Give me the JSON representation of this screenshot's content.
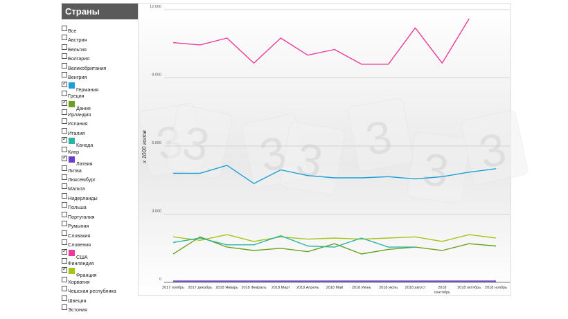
{
  "sidebar": {
    "title": "Страны",
    "countries": [
      {
        "label": "Все",
        "checked": false
      },
      {
        "label": "Австрия",
        "checked": false
      },
      {
        "label": "Бельгия",
        "checked": false
      },
      {
        "label": "Болгария",
        "checked": false
      },
      {
        "label": "Великобритания",
        "checked": false
      },
      {
        "label": "Венгрия",
        "checked": false
      },
      {
        "label": "Германия",
        "checked": true,
        "color": "#1c9fd8"
      },
      {
        "label": "Греция",
        "checked": false
      },
      {
        "label": "Дания",
        "checked": true,
        "color": "#6aa11d"
      },
      {
        "label": "Ирландия",
        "checked": false
      },
      {
        "label": "Испания",
        "checked": false
      },
      {
        "label": "Италия",
        "checked": false
      },
      {
        "label": "Канада",
        "checked": true,
        "color": "#2bb3a6"
      },
      {
        "label": "Кипр",
        "checked": false
      },
      {
        "label": "Латвия",
        "checked": true,
        "color": "#6a3fc9"
      },
      {
        "label": "Литва",
        "checked": false
      },
      {
        "label": "Люксембург",
        "checked": false
      },
      {
        "label": "Мальта",
        "checked": false
      },
      {
        "label": "Нидерланды",
        "checked": false
      },
      {
        "label": "Польша",
        "checked": false
      },
      {
        "label": "Португалия",
        "checked": false
      },
      {
        "label": "Румыния",
        "checked": false
      },
      {
        "label": "Словакия",
        "checked": false
      },
      {
        "label": "Словения",
        "checked": false
      },
      {
        "label": "США",
        "checked": true,
        "color": "#ea3a9b"
      },
      {
        "label": "Финляндия",
        "checked": false
      },
      {
        "label": "Франция",
        "checked": true,
        "color": "#a5c41a"
      },
      {
        "label": "Хорватия",
        "checked": false
      },
      {
        "label": "Чешская республика",
        "checked": false
      },
      {
        "label": "Швеция",
        "checked": false
      },
      {
        "label": "Эстония",
        "checked": false
      }
    ]
  },
  "chart_data": {
    "type": "line",
    "ylabel": "x 1000 голов",
    "ylim": [
      0,
      12000
    ],
    "yticks": [
      0,
      3000,
      6000,
      9000,
      12000
    ],
    "ytick_labels": [
      "0",
      "3.000",
      "6.000",
      "9.000",
      "12.000"
    ],
    "grid": true,
    "watermark": "3",
    "categories": [
      "2017 ноябрь",
      "2017 декабрь",
      "2018 Январь",
      "2018 Февраль",
      "2018 Март",
      "2018 Апрель",
      "2018 Май",
      "2018 Июнь",
      "2018 июль",
      "2018 август",
      "2018 сентябрь",
      "2018 октябрь",
      "2018 ноябрь"
    ],
    "category_lines": [
      [
        "2017 ноябрь"
      ],
      [
        "2017 декабрь"
      ],
      [
        "2018 Январь"
      ],
      [
        "2018 Февраль"
      ],
      [
        "2018 Март"
      ],
      [
        "2018 Апрель"
      ],
      [
        "2018 Май"
      ],
      [
        "2018 Июнь"
      ],
      [
        "2018 июль"
      ],
      [
        "2018 август"
      ],
      [
        "2018",
        "сентябрь"
      ],
      [
        "2018 октябрь"
      ],
      [
        "2018 ноябрь"
      ]
    ],
    "series": [
      {
        "name": "США",
        "color": "#ea3a9b",
        "values": [
          10550,
          10450,
          10750,
          9650,
          10750,
          10000,
          10250,
          9600,
          9600,
          11200,
          9650,
          11600,
          null
        ]
      },
      {
        "name": "Германия",
        "color": "#1c9fd8",
        "values": [
          4800,
          4800,
          5150,
          4350,
          4950,
          4700,
          4600,
          4600,
          4650,
          4550,
          4650,
          4850,
          5000
        ]
      },
      {
        "name": "Франция",
        "color": "#a5c41a",
        "values": [
          2000,
          1850,
          2100,
          1800,
          2000,
          1900,
          1950,
          1900,
          1950,
          2000,
          1800,
          2100,
          1950
        ]
      },
      {
        "name": "Дания",
        "color": "#6aa11d",
        "values": [
          1250,
          2000,
          1550,
          1400,
          1500,
          1350,
          1700,
          1250,
          1450,
          1550,
          1400,
          1700,
          1600
        ]
      },
      {
        "name": "Канада",
        "color": "#2bb3a6",
        "values": [
          1750,
          1950,
          1650,
          1650,
          2050,
          1600,
          1550,
          1950,
          1550,
          1550,
          null,
          null,
          null
        ]
      },
      {
        "name": "Латвия",
        "color": "#6a3fc9",
        "values": [
          50,
          50,
          50,
          50,
          50,
          50,
          50,
          50,
          50,
          50,
          50,
          50,
          50
        ]
      }
    ]
  }
}
